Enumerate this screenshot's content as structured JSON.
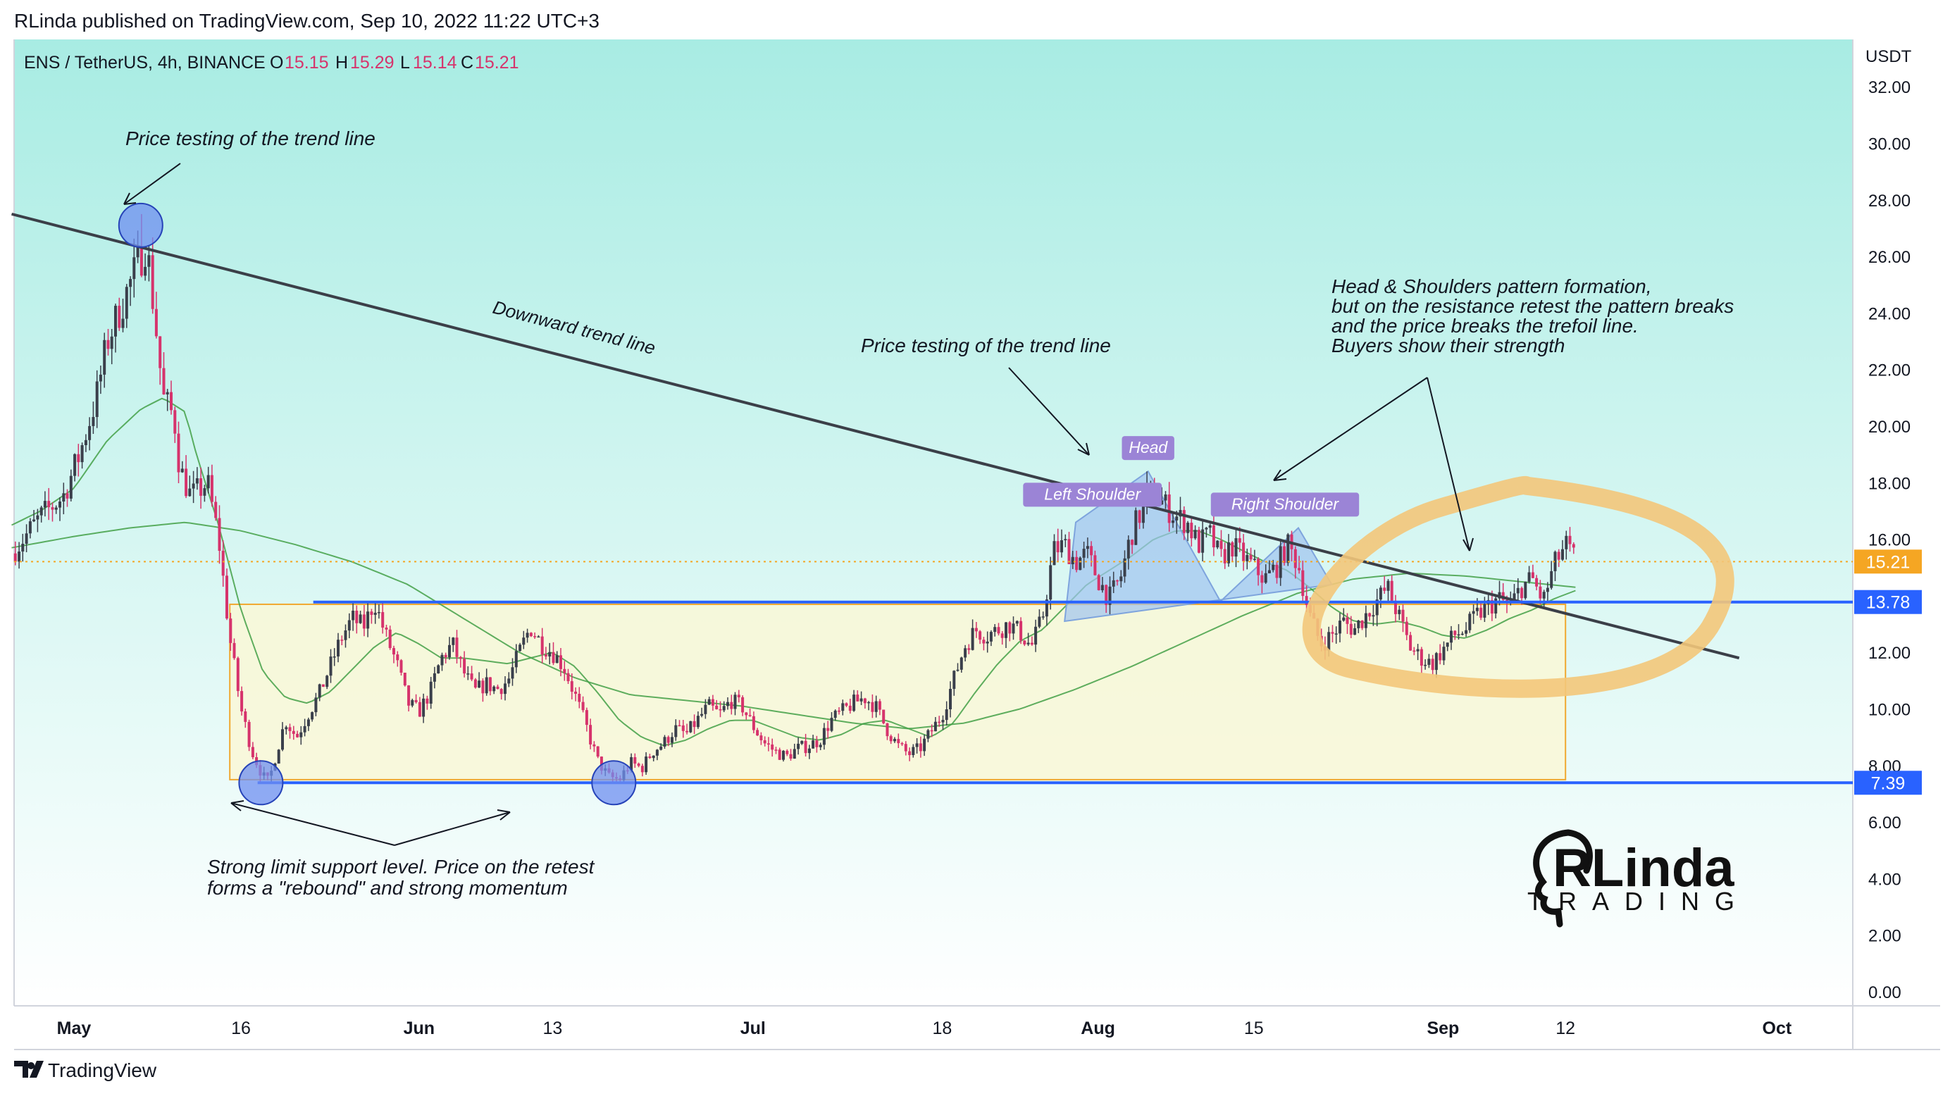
{
  "header": {
    "published": "RLinda published on TradingView.com, Sep 10, 2022 11:22 UTC+3"
  },
  "symbol_line": {
    "symbol": "ENS / TetherUS, 4h, BINANCE",
    "o_label": "O",
    "o_value": "15.15",
    "h_label": "H",
    "h_value": "15.29",
    "l_label": "L",
    "l_value": "15.14",
    "c_label": "C",
    "c_value": "15.21"
  },
  "footer": {
    "brand": "TradingView"
  },
  "logo": {
    "name": "RLinda",
    "sub": "TRADING"
  },
  "colors": {
    "bg_top": "#a8ece3",
    "bg_bottom": "#ffffff",
    "up": "#3a3f4b",
    "down": "#d6336c",
    "trend": "#3b3f48",
    "support": "#2962ff",
    "box_fill": "#fbf8d4",
    "box_stroke": "#f0a830",
    "ma": "#43a047",
    "hs_fill": "#9fc3f0",
    "tag": "#9b84d6",
    "swirl": "#f3c77a"
  },
  "chart_data": {
    "type": "candlestick",
    "title": "ENS / TetherUS, 4h, BINANCE",
    "currency": "USDT",
    "ylim": [
      -0.5,
      33.5
    ],
    "y_ticks": [
      "0.00",
      "2.00",
      "4.00",
      "6.00",
      "8.00",
      "10.00",
      "12.00",
      "14.00",
      "16.00",
      "18.00",
      "20.00",
      "22.00",
      "24.00",
      "26.00",
      "28.00",
      "30.00",
      "32.00"
    ],
    "x_ticks": [
      {
        "day": 0,
        "label": "May",
        "bold": true
      },
      {
        "day": 15,
        "label": "16"
      },
      {
        "day": 31,
        "label": "Jun",
        "bold": true
      },
      {
        "day": 43,
        "label": "13"
      },
      {
        "day": 61,
        "label": "Jul",
        "bold": true
      },
      {
        "day": 78,
        "label": "18"
      },
      {
        "day": 92,
        "label": "Aug",
        "bold": true
      },
      {
        "day": 106,
        "label": "15"
      },
      {
        "day": 123,
        "label": "Sep",
        "bold": true
      },
      {
        "day": 134,
        "label": "12"
      },
      {
        "day": 153,
        "label": "Oct",
        "bold": true
      }
    ],
    "price_anchors": [
      [
        -5.6,
        15.5
      ],
      [
        -3,
        16.8
      ],
      [
        -1,
        17.5
      ],
      [
        0.5,
        19
      ],
      [
        2,
        21
      ],
      [
        3,
        23
      ],
      [
        5,
        25
      ],
      [
        6.5,
        26.5
      ],
      [
        7.5,
        23
      ],
      [
        8,
        21
      ],
      [
        9,
        20.3
      ],
      [
        9.5,
        18.5
      ],
      [
        10.5,
        17.5
      ],
      [
        12,
        18
      ],
      [
        13,
        16
      ],
      [
        14,
        12.5
      ],
      [
        15,
        10
      ],
      [
        16,
        8.5
      ],
      [
        17,
        7.6
      ],
      [
        17.5,
        7.4
      ],
      [
        18,
        8.2
      ],
      [
        19,
        9.6
      ],
      [
        20,
        9
      ],
      [
        21,
        9.8
      ],
      [
        22,
        10.5
      ],
      [
        23,
        11.5
      ],
      [
        24,
        12.5
      ],
      [
        25,
        13.2
      ],
      [
        26,
        12.9
      ],
      [
        27,
        13.8
      ],
      [
        28,
        12.6
      ],
      [
        29,
        11.6
      ],
      [
        30,
        10.2
      ],
      [
        31,
        9.9
      ],
      [
        32,
        10.6
      ],
      [
        33,
        11.8
      ],
      [
        34,
        12.3
      ],
      [
        35,
        11.3
      ],
      [
        36,
        10.6
      ],
      [
        37,
        10.9
      ],
      [
        38,
        10.7
      ],
      [
        39,
        11
      ],
      [
        40,
        12
      ],
      [
        41,
        12.9
      ],
      [
        42,
        12.3
      ],
      [
        43,
        12
      ],
      [
        44,
        11.5
      ],
      [
        45,
        10.5
      ],
      [
        46,
        9.4
      ],
      [
        47,
        8.2
      ],
      [
        48,
        7.6
      ],
      [
        49,
        7.5
      ],
      [
        50,
        8.1
      ],
      [
        51,
        7.9
      ],
      [
        52,
        8.5
      ],
      [
        53,
        8.8
      ],
      [
        54,
        9.3
      ],
      [
        55,
        9.1
      ],
      [
        56,
        9.6
      ],
      [
        57,
        10.1
      ],
      [
        58,
        9.8
      ],
      [
        59,
        10.3
      ],
      [
        60,
        10.1
      ],
      [
        61,
        9.4
      ],
      [
        62,
        8.8
      ],
      [
        63,
        8.5
      ],
      [
        64,
        8.3
      ],
      [
        65,
        8.6
      ],
      [
        66,
        8.7
      ],
      [
        67,
        8.9
      ],
      [
        68,
        9.6
      ],
      [
        69,
        9.9
      ],
      [
        70,
        10.2
      ],
      [
        71,
        10.4
      ],
      [
        72,
        10.1
      ],
      [
        73,
        9.3
      ],
      [
        74,
        8.7
      ],
      [
        75,
        8.4
      ],
      [
        76,
        8.6
      ],
      [
        77,
        9.2
      ],
      [
        78,
        9.8
      ],
      [
        79,
        11
      ],
      [
        80,
        12.2
      ],
      [
        81,
        12.8
      ],
      [
        82,
        12.6
      ],
      [
        83,
        12.8
      ],
      [
        84,
        13
      ],
      [
        85,
        12.7
      ],
      [
        86,
        12.2
      ],
      [
        87,
        13.2
      ],
      [
        88,
        15.6
      ],
      [
        89,
        15.8
      ],
      [
        90,
        15.2
      ],
      [
        91,
        15.5
      ],
      [
        92,
        14.6
      ],
      [
        93,
        13.9
      ],
      [
        94,
        14.6
      ],
      [
        95,
        16.2
      ],
      [
        96,
        17.1
      ],
      [
        97,
        17.6
      ],
      [
        98,
        17.2
      ],
      [
        99,
        16.8
      ],
      [
        100,
        16.6
      ],
      [
        101,
        15.8
      ],
      [
        102,
        16.2
      ],
      [
        103,
        15.3
      ],
      [
        104,
        15.8
      ],
      [
        105,
        15.4
      ],
      [
        106,
        15
      ],
      [
        107,
        14.6
      ],
      [
        108,
        15
      ],
      [
        109,
        15.8
      ],
      [
        110,
        15.1
      ],
      [
        111,
        13.3
      ],
      [
        112,
        12.3
      ],
      [
        113,
        12.6
      ],
      [
        114,
        13.1
      ],
      [
        115,
        12.8
      ],
      [
        116,
        13.3
      ],
      [
        117,
        13.8
      ],
      [
        118,
        14.3
      ],
      [
        119,
        13.3
      ],
      [
        120,
        12.2
      ],
      [
        121,
        11.8
      ],
      [
        122,
        11.6
      ],
      [
        123,
        12.1
      ],
      [
        124,
        12.6
      ],
      [
        125,
        12.8
      ],
      [
        126,
        13.3
      ],
      [
        127,
        13.6
      ],
      [
        128,
        13.9
      ],
      [
        129,
        13.6
      ],
      [
        130,
        14.3
      ],
      [
        131,
        14.6
      ],
      [
        132,
        13.8
      ],
      [
        133,
        15.1
      ],
      [
        134,
        15.8
      ],
      [
        135,
        15.21
      ]
    ],
    "wick_spikes": [
      [
        6,
        27.5
      ],
      [
        16.6,
        7.35
      ],
      [
        48.3,
        7.35
      ],
      [
        96.5,
        18.4
      ]
    ],
    "ma_fast_anchors": [
      [
        -5.6,
        16.5
      ],
      [
        -3,
        17
      ],
      [
        0,
        17.8
      ],
      [
        3,
        19.5
      ],
      [
        6,
        20.6
      ],
      [
        8,
        21
      ],
      [
        10,
        20.5
      ],
      [
        11,
        19
      ],
      [
        13,
        16.5
      ],
      [
        15,
        13.5
      ],
      [
        17,
        11.3
      ],
      [
        19,
        10.4
      ],
      [
        21,
        10.2
      ],
      [
        23,
        10.6
      ],
      [
        25,
        11.4
      ],
      [
        27,
        12.2
      ],
      [
        29,
        12.7
      ],
      [
        31,
        12.3
      ],
      [
        33,
        11.8
      ],
      [
        35,
        11.8
      ],
      [
        37,
        11.7
      ],
      [
        39,
        11.6
      ],
      [
        41,
        11.8
      ],
      [
        43,
        12
      ],
      [
        45,
        11.5
      ],
      [
        47,
        10.6
      ],
      [
        49,
        9.6
      ],
      [
        51,
        9
      ],
      [
        53,
        8.7
      ],
      [
        55,
        8.9
      ],
      [
        57,
        9.3
      ],
      [
        59,
        9.6
      ],
      [
        61,
        9.6
      ],
      [
        63,
        9.3
      ],
      [
        65,
        9
      ],
      [
        67,
        8.9
      ],
      [
        69,
        9.1
      ],
      [
        71,
        9.5
      ],
      [
        73,
        9.6
      ],
      [
        75,
        9.3
      ],
      [
        77,
        9
      ],
      [
        79,
        9.5
      ],
      [
        81,
        10.6
      ],
      [
        83,
        11.6
      ],
      [
        85,
        12.4
      ],
      [
        87,
        12.8
      ],
      [
        89,
        13.6
      ],
      [
        91,
        14.4
      ],
      [
        93,
        14.9
      ],
      [
        95,
        15.4
      ],
      [
        97,
        16
      ],
      [
        99,
        16.3
      ],
      [
        101,
        16.3
      ],
      [
        103,
        16
      ],
      [
        105,
        15.6
      ],
      [
        107,
        15.2
      ],
      [
        109,
        14.9
      ],
      [
        111,
        14.3
      ],
      [
        113,
        13.6
      ],
      [
        115,
        13.1
      ],
      [
        117,
        13
      ],
      [
        119,
        13.1
      ],
      [
        121,
        12.9
      ],
      [
        123,
        12.6
      ],
      [
        125,
        12.5
      ],
      [
        127,
        12.8
      ],
      [
        129,
        13.2
      ],
      [
        131,
        13.5
      ],
      [
        133,
        13.9
      ],
      [
        135,
        14.2
      ]
    ],
    "ma_slow_anchors": [
      [
        -5.6,
        15.7
      ],
      [
        0,
        16.1
      ],
      [
        5,
        16.4
      ],
      [
        10,
        16.6
      ],
      [
        15,
        16.3
      ],
      [
        20,
        15.8
      ],
      [
        25,
        15.2
      ],
      [
        30,
        14.4
      ],
      [
        35,
        13.2
      ],
      [
        40,
        12
      ],
      [
        45,
        11.1
      ],
      [
        50,
        10.5
      ],
      [
        55,
        10.3
      ],
      [
        60,
        10.1
      ],
      [
        65,
        9.8
      ],
      [
        70,
        9.5
      ],
      [
        75,
        9.3
      ],
      [
        80,
        9.5
      ],
      [
        85,
        10
      ],
      [
        90,
        10.7
      ],
      [
        95,
        11.5
      ],
      [
        100,
        12.4
      ],
      [
        105,
        13.3
      ],
      [
        110,
        14.1
      ],
      [
        115,
        14.6
      ],
      [
        120,
        14.8
      ],
      [
        125,
        14.7
      ],
      [
        130,
        14.5
      ],
      [
        135,
        14.3
      ]
    ],
    "trend_line": {
      "start": [
        -5.6,
        27.5
      ],
      "end": [
        149.6,
        11.8
      ],
      "label": "Downward trend line"
    },
    "support_level": {
      "value": 7.39,
      "label": "7.39"
    },
    "resistance_level": {
      "value": 13.78,
      "label": "13.78"
    },
    "current_price": {
      "value": 15.21,
      "label": "15.21"
    },
    "range_box": {
      "x1": 14,
      "x2": 134,
      "y1": 7.5,
      "y2": 13.7
    },
    "head_shoulders": [
      [
        89,
        13.1
      ],
      [
        90,
        16.6
      ],
      [
        96.5,
        18.4
      ],
      [
        103,
        13.8
      ],
      [
        110,
        16.4
      ],
      [
        113,
        14.4
      ]
    ],
    "pattern_labels": [
      {
        "text": "Left Shoulder",
        "day": 91.5,
        "price": 17.55
      },
      {
        "text": "Head",
        "day": 96.5,
        "price": 19.2
      },
      {
        "text": "Right Shoulder",
        "day": 108.8,
        "price": 17.2
      }
    ],
    "circles": [
      [
        6,
        27.1
      ],
      [
        16.8,
        7.39
      ],
      [
        48.5,
        7.39
      ]
    ],
    "annotations": [
      {
        "text": "Price testing of the trend line",
        "lines": [
          "Price testing of the trend line"
        ]
      },
      {
        "text": "Price testing of the trend line",
        "lines": [
          "Price testing of the trend line"
        ]
      },
      {
        "text": "Strong limit support level. Price on the retest forms a \"rebound\" and strong momentum",
        "lines": [
          "Strong limit support level. Price on the retest",
          "forms a \"rebound\" and strong momentum"
        ]
      },
      {
        "text": "Head & Shoulders pattern formation, but on the resistance retest the pattern breaks and the price breaks the trefoil line. Buyers show their strength",
        "lines": [
          "Head & Shoulders pattern formation,",
          "but on the resistance retest the pattern breaks",
          "and the price breaks the trefoil line.",
          "Buyers show their strength"
        ]
      }
    ]
  }
}
